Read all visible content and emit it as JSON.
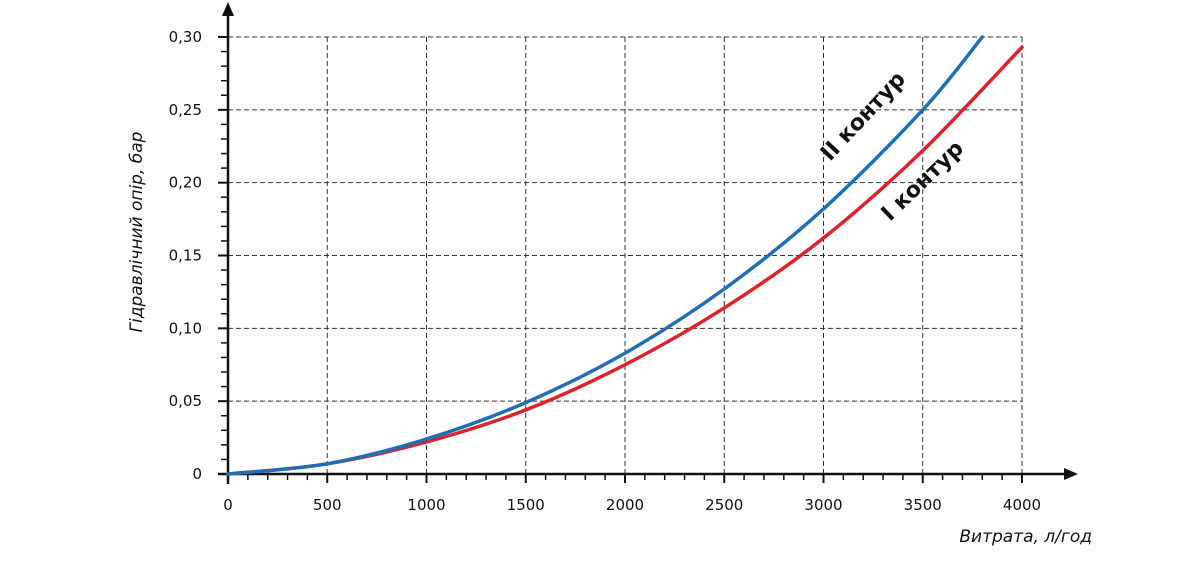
{
  "chart_data": {
    "type": "line",
    "xlabel": "Витрата, л/год",
    "ylabel": "Гідравлічний опір, бар",
    "xlim": [
      0,
      4000
    ],
    "ylim": [
      0,
      0.3
    ],
    "grid": true,
    "x_ticks": [
      0,
      500,
      1000,
      1500,
      2000,
      2500,
      3000,
      3500,
      4000
    ],
    "x_tick_labels": [
      "0",
      "500",
      "1000",
      "1500",
      "2000",
      "2500",
      "3000",
      "3500",
      "4000"
    ],
    "y_ticks": [
      0,
      0.05,
      0.1,
      0.15,
      0.2,
      0.25,
      0.3
    ],
    "y_tick_labels": [
      "0",
      "0,05",
      "0,10",
      "0,15",
      "0,20",
      "0,25",
      "0,30"
    ],
    "series": [
      {
        "name": "II контур",
        "color": "#1f6fb8",
        "x": [
          0,
          500,
          1000,
          1500,
          2000,
          2500,
          3000,
          3500,
          3800
        ],
        "y": [
          0,
          0.007,
          0.024,
          0.049,
          0.083,
          0.127,
          0.182,
          0.25,
          0.3
        ]
      },
      {
        "name": "I контур",
        "color": "#e0202a",
        "x": [
          0,
          500,
          1000,
          1500,
          2000,
          2500,
          3000,
          3500,
          4000
        ],
        "y": [
          0,
          0.007,
          0.022,
          0.044,
          0.075,
          0.114,
          0.162,
          0.222,
          0.293
        ]
      }
    ]
  }
}
